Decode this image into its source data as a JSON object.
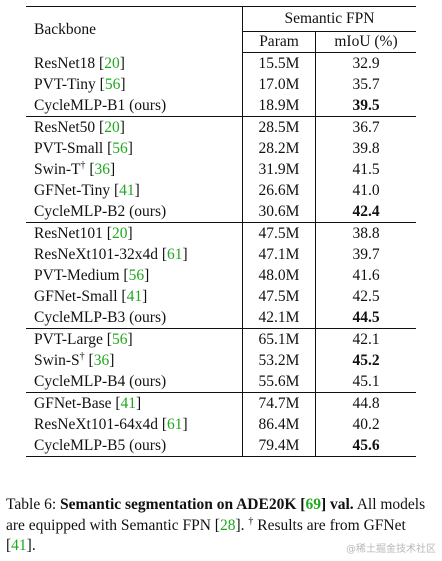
{
  "table": {
    "header": {
      "backbone": "Backbone",
      "group": "Semantic FPN",
      "param": "Param",
      "miou": "mIoU (%)"
    },
    "groups": [
      {
        "rows": [
          {
            "name": "ResNet18",
            "ref": "20",
            "dagger": false,
            "param": "15.5M",
            "miou": "32.9",
            "best": false
          },
          {
            "name": "PVT-Tiny",
            "ref": "56",
            "dagger": false,
            "param": "17.0M",
            "miou": "35.7",
            "best": false
          },
          {
            "name": "CycleMLP-B1 (ours)",
            "ref": "",
            "dagger": false,
            "param": "18.9M",
            "miou": "39.5",
            "best": true
          }
        ]
      },
      {
        "rows": [
          {
            "name": "ResNet50",
            "ref": "20",
            "dagger": false,
            "param": "28.5M",
            "miou": "36.7",
            "best": false
          },
          {
            "name": "PVT-Small",
            "ref": "56",
            "dagger": false,
            "param": "28.2M",
            "miou": "39.8",
            "best": false
          },
          {
            "name": "Swin-T",
            "ref": "36",
            "dagger": true,
            "param": "31.9M",
            "miou": "41.5",
            "best": false
          },
          {
            "name": "GFNet-Tiny",
            "ref": "41",
            "dagger": false,
            "param": "26.6M",
            "miou": "41.0",
            "best": false
          },
          {
            "name": "CycleMLP-B2 (ours)",
            "ref": "",
            "dagger": false,
            "param": "30.6M",
            "miou": "42.4",
            "best": true
          }
        ]
      },
      {
        "rows": [
          {
            "name": "ResNet101",
            "ref": "20",
            "dagger": false,
            "param": "47.5M",
            "miou": "38.8",
            "best": false
          },
          {
            "name": "ResNeXt101-32x4d",
            "ref": "61",
            "dagger": false,
            "param": "47.1M",
            "miou": "39.7",
            "best": false
          },
          {
            "name": "PVT-Medium",
            "ref": "56",
            "dagger": false,
            "param": "48.0M",
            "miou": "41.6",
            "best": false
          },
          {
            "name": "GFNet-Small",
            "ref": "41",
            "dagger": false,
            "param": "47.5M",
            "miou": "42.5",
            "best": false
          },
          {
            "name": "CycleMLP-B3 (ours)",
            "ref": "",
            "dagger": false,
            "param": "42.1M",
            "miou": "44.5",
            "best": true
          }
        ]
      },
      {
        "rows": [
          {
            "name": "PVT-Large",
            "ref": "56",
            "dagger": false,
            "param": "65.1M",
            "miou": "42.1",
            "best": false
          },
          {
            "name": "Swin-S",
            "ref": "36",
            "dagger": true,
            "param": "53.2M",
            "miou": "45.2",
            "best": true
          },
          {
            "name": "CycleMLP-B4 (ours)",
            "ref": "",
            "dagger": false,
            "param": "55.6M",
            "miou": "45.1",
            "best": false
          }
        ]
      },
      {
        "rows": [
          {
            "name": "GFNet-Base",
            "ref": "41",
            "dagger": false,
            "param": "74.7M",
            "miou": "44.8",
            "best": false
          },
          {
            "name": "ResNeXt101-64x4d",
            "ref": "61",
            "dagger": false,
            "param": "86.4M",
            "miou": "40.2",
            "best": false
          },
          {
            "name": "CycleMLP-B5 (ours)",
            "ref": "",
            "dagger": false,
            "param": "79.4M",
            "miou": "45.6",
            "best": true
          }
        ]
      }
    ]
  },
  "caption": {
    "label": "Table 6: ",
    "bold_pre": "Semantic segmentation on ADE20K ",
    "bold_ref": "69",
    "bold_post": " val.",
    "text1": " All models are equipped with Semantic FPN ",
    "ref1": "28",
    "text2": ". ",
    "dagger": "†",
    "text3": " Results are from GFNet ",
    "ref2": "41",
    "text4": "."
  },
  "watermark": "@稀土掘金技术社区"
}
